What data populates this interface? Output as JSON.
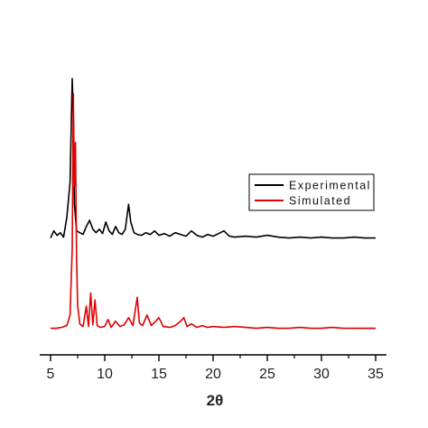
{
  "chart_data": {
    "type": "line",
    "title": "",
    "xlabel": "2θ",
    "ylabel": "",
    "xlim": [
      4,
      36
    ],
    "ylim": [
      0,
      3.6
    ],
    "xticks": [
      5,
      10,
      15,
      20,
      25,
      30,
      35
    ],
    "xtick_labels": [
      "5",
      "10",
      "15",
      "20",
      "25",
      "30",
      "35"
    ],
    "grid": false,
    "legend_position": "center-right",
    "baselines": {
      "Experimental": 1.32,
      "Simulated": 0.3
    },
    "series": [
      {
        "name": "Experimental",
        "color": "#000000",
        "x": [
          5.0,
          5.3,
          5.6,
          5.9,
          6.2,
          6.5,
          6.8,
          7.0,
          7.1,
          7.2,
          7.4,
          7.7,
          8.0,
          8.3,
          8.6,
          8.9,
          9.2,
          9.5,
          9.8,
          10.1,
          10.4,
          10.7,
          11.0,
          11.3,
          11.6,
          11.9,
          12.2,
          12.4,
          12.7,
          13.0,
          13.4,
          13.8,
          14.2,
          14.6,
          15.0,
          15.5,
          16.0,
          16.5,
          17.0,
          17.5,
          18.0,
          18.5,
          19.0,
          19.5,
          20.0,
          20.5,
          21.0,
          21.5,
          22.0,
          23.0,
          24.0,
          25.0,
          26.0,
          27.0,
          28.0,
          29.0,
          30.0,
          31.0,
          32.0,
          33.0,
          34.0,
          35.0
        ],
        "values": [
          1.32,
          1.4,
          1.35,
          1.38,
          1.33,
          1.55,
          1.95,
          3.12,
          2.7,
          1.7,
          1.4,
          1.38,
          1.36,
          1.45,
          1.52,
          1.42,
          1.38,
          1.42,
          1.37,
          1.5,
          1.4,
          1.36,
          1.45,
          1.38,
          1.36,
          1.42,
          1.7,
          1.5,
          1.38,
          1.36,
          1.35,
          1.38,
          1.36,
          1.4,
          1.35,
          1.37,
          1.34,
          1.38,
          1.36,
          1.34,
          1.4,
          1.35,
          1.33,
          1.36,
          1.34,
          1.37,
          1.4,
          1.34,
          1.33,
          1.34,
          1.33,
          1.35,
          1.33,
          1.32,
          1.33,
          1.32,
          1.33,
          1.32,
          1.32,
          1.33,
          1.32,
          1.32
        ]
      },
      {
        "name": "Simulated",
        "color": "#e00000",
        "x": [
          5.0,
          5.5,
          6.0,
          6.5,
          6.8,
          7.0,
          7.1,
          7.2,
          7.3,
          7.4,
          7.5,
          7.7,
          8.0,
          8.3,
          8.5,
          8.7,
          8.9,
          9.1,
          9.3,
          9.6,
          10.0,
          10.3,
          10.6,
          11.0,
          11.4,
          11.8,
          12.2,
          12.6,
          13.0,
          13.2,
          13.5,
          13.9,
          14.3,
          14.7,
          15.0,
          15.4,
          16.0,
          16.5,
          17.0,
          17.3,
          17.6,
          18.0,
          18.5,
          19.0,
          19.5,
          20.0,
          21.0,
          22.0,
          23.0,
          24.0,
          25.0,
          26.0,
          27.0,
          28.0,
          29.0,
          30.0,
          31.0,
          32.0,
          33.0,
          34.0,
          35.0
        ],
        "values": [
          0.3,
          0.3,
          0.31,
          0.33,
          0.45,
          1.2,
          2.95,
          1.9,
          2.4,
          1.1,
          0.55,
          0.35,
          0.32,
          0.55,
          0.32,
          0.7,
          0.34,
          0.62,
          0.33,
          0.31,
          0.32,
          0.4,
          0.31,
          0.38,
          0.32,
          0.34,
          0.42,
          0.33,
          0.65,
          0.36,
          0.33,
          0.45,
          0.33,
          0.38,
          0.42,
          0.32,
          0.31,
          0.33,
          0.38,
          0.42,
          0.32,
          0.35,
          0.31,
          0.33,
          0.31,
          0.32,
          0.31,
          0.32,
          0.31,
          0.3,
          0.31,
          0.3,
          0.3,
          0.31,
          0.3,
          0.3,
          0.31,
          0.3,
          0.3,
          0.3,
          0.3
        ]
      }
    ]
  }
}
